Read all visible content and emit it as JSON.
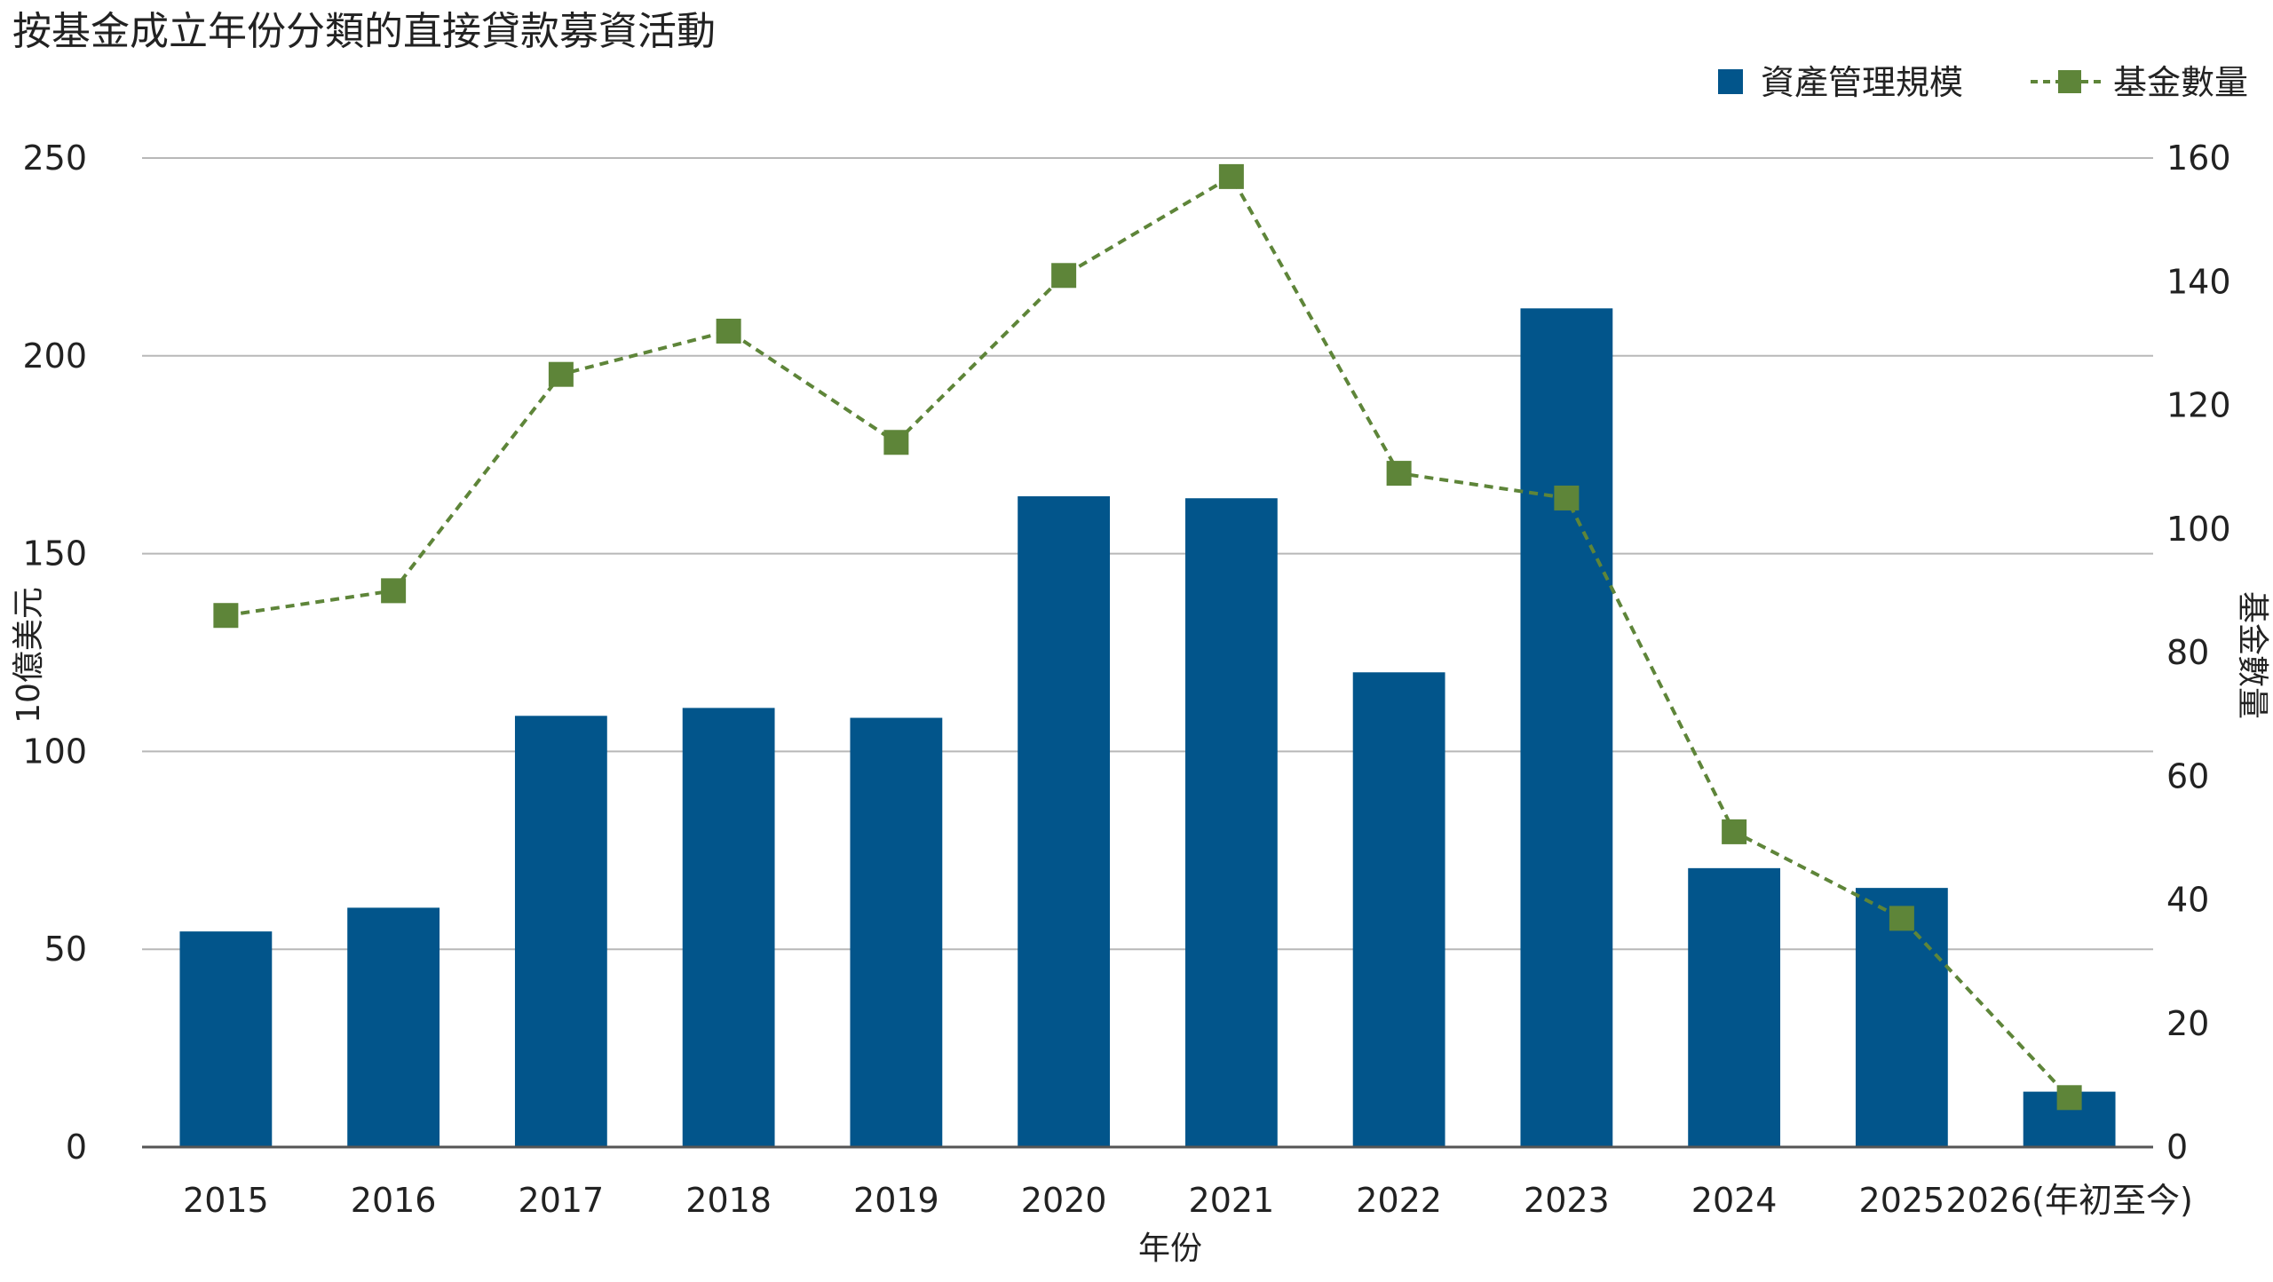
{
  "chart_data": {
    "type": "bar",
    "title": "按基金成立年份分類的直接貸款募資活動",
    "xlabel": "年份",
    "ylabel": "10億美元",
    "y2label": "基金數量",
    "categories": [
      "2015",
      "2016",
      "2017",
      "2018",
      "2019",
      "2020",
      "2021",
      "2022",
      "2023",
      "2024",
      "2025",
      "2026(年初至今)"
    ],
    "ylim": [
      0,
      250
    ],
    "y2lim": [
      0,
      160
    ],
    "yticks": [
      0,
      50,
      100,
      150,
      200,
      250
    ],
    "y2ticks": [
      0,
      20,
      40,
      60,
      80,
      100,
      120,
      140,
      160
    ],
    "grid": true,
    "legend_position": "top-right",
    "series": [
      {
        "name": "資產管理規模",
        "type": "bar",
        "axis": "left",
        "color": "#02558b",
        "values": [
          54.5,
          60.5,
          109,
          111,
          108.5,
          164.5,
          164,
          120,
          212,
          70.5,
          65.5,
          14
        ]
      },
      {
        "name": "基金數量",
        "type": "line",
        "axis": "right",
        "color": "#5e8539",
        "line_style": "dashed",
        "marker": "square",
        "values": [
          86,
          90,
          125,
          132,
          114,
          141,
          157,
          109,
          105,
          51,
          37,
          8
        ]
      }
    ]
  }
}
